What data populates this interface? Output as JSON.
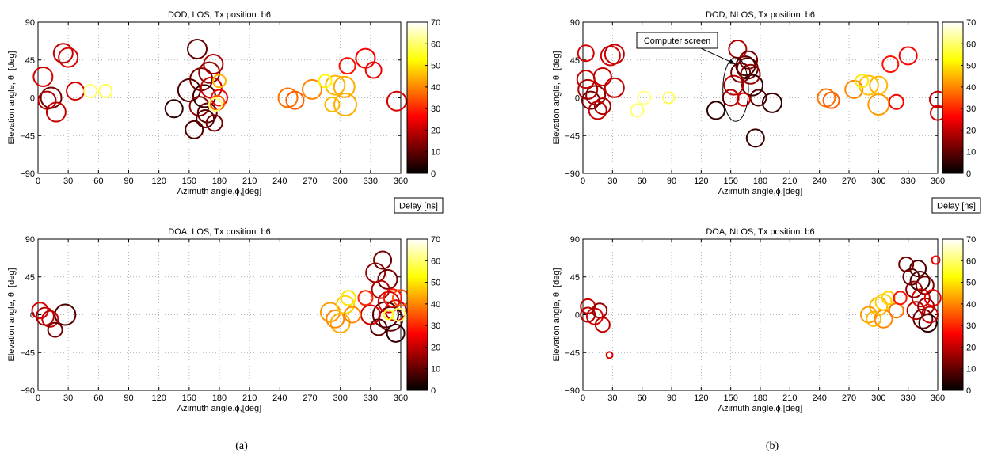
{
  "colors": {
    "colormap": "hot",
    "annotation": "#000000"
  },
  "captions": [
    "(a)",
    "(b)"
  ],
  "delay_label": "Delay [ns]",
  "annotation_text": "Computer screen",
  "chart_data": [
    {
      "type": "scatter",
      "title": "DOD, LOS, Tx position: b6",
      "xlabel": "Azimuth angle,ϕ,[deg]",
      "ylabel": "Elevation angle, θ, [deg]",
      "xlim": [
        0,
        360
      ],
      "ylim": [
        -90,
        90
      ],
      "xticks": [
        0,
        30,
        60,
        90,
        120,
        150,
        180,
        210,
        240,
        270,
        300,
        330,
        360
      ],
      "yticks": [
        -90,
        -45,
        0,
        45,
        90
      ],
      "grid": true,
      "colorbar": {
        "label": "Delay [ns]",
        "range": [
          0,
          70
        ],
        "ticks": [
          0,
          10,
          20,
          30,
          40,
          50,
          60,
          70
        ]
      },
      "points": [
        {
          "x": 5,
          "y": 25,
          "delay": 22,
          "size": 12
        },
        {
          "x": 13,
          "y": 0,
          "delay": 12,
          "size": 13
        },
        {
          "x": 9,
          "y": -3,
          "delay": 18,
          "size": 11
        },
        {
          "x": 18,
          "y": -17,
          "delay": 20,
          "size": 12
        },
        {
          "x": 25,
          "y": 53,
          "delay": 20,
          "size": 12
        },
        {
          "x": 30,
          "y": 48,
          "delay": 22,
          "size": 12
        },
        {
          "x": 37,
          "y": 8,
          "delay": 22,
          "size": 11
        },
        {
          "x": 52,
          "y": 8,
          "delay": 60,
          "size": 8
        },
        {
          "x": 67,
          "y": 8,
          "delay": 58,
          "size": 8
        },
        {
          "x": 135,
          "y": -13,
          "delay": 5,
          "size": 11
        },
        {
          "x": 150,
          "y": 9,
          "delay": 8,
          "size": 14
        },
        {
          "x": 155,
          "y": -38,
          "delay": 8,
          "size": 11
        },
        {
          "x": 158,
          "y": 58,
          "delay": 10,
          "size": 12
        },
        {
          "x": 162,
          "y": 22,
          "delay": 12,
          "size": 14
        },
        {
          "x": 165,
          "y": 2,
          "delay": 6,
          "size": 14
        },
        {
          "x": 168,
          "y": -18,
          "delay": 10,
          "size": 12
        },
        {
          "x": 170,
          "y": 30,
          "delay": 15,
          "size": 13
        },
        {
          "x": 172,
          "y": 12,
          "delay": 20,
          "size": 13
        },
        {
          "x": 174,
          "y": 40,
          "delay": 18,
          "size": 12
        },
        {
          "x": 175,
          "y": -30,
          "delay": 12,
          "size": 10
        },
        {
          "x": 178,
          "y": -6,
          "delay": 35,
          "size": 9
        },
        {
          "x": 180,
          "y": 20,
          "delay": 45,
          "size": 8
        },
        {
          "x": 180,
          "y": 0,
          "delay": 25,
          "size": 10
        },
        {
          "x": 160,
          "y": -10,
          "delay": 14,
          "size": 12
        },
        {
          "x": 166,
          "y": -25,
          "delay": 9,
          "size": 11
        },
        {
          "x": 176,
          "y": -8,
          "delay": 60,
          "size": 8
        },
        {
          "x": 248,
          "y": 0,
          "delay": 38,
          "size": 12
        },
        {
          "x": 255,
          "y": -3,
          "delay": 36,
          "size": 11
        },
        {
          "x": 272,
          "y": 10,
          "delay": 40,
          "size": 12
        },
        {
          "x": 285,
          "y": 20,
          "delay": 52,
          "size": 8
        },
        {
          "x": 292,
          "y": -8,
          "delay": 45,
          "size": 9
        },
        {
          "x": 295,
          "y": 15,
          "delay": 45,
          "size": 12
        },
        {
          "x": 305,
          "y": -8,
          "delay": 44,
          "size": 14
        },
        {
          "x": 304,
          "y": 13,
          "delay": 44,
          "size": 13
        },
        {
          "x": 307,
          "y": 38,
          "delay": 28,
          "size": 10
        },
        {
          "x": 325,
          "y": 47,
          "delay": 26,
          "size": 12
        },
        {
          "x": 333,
          "y": 33,
          "delay": 25,
          "size": 10
        },
        {
          "x": 356,
          "y": -4,
          "delay": 22,
          "size": 12
        }
      ]
    },
    {
      "type": "scatter",
      "title": "DOD, NLOS, Tx position: b6",
      "xlabel": "Azimuth angle,ϕ,[deg]",
      "ylabel": "Elevation angle, θ, [deg]",
      "xlim": [
        0,
        360
      ],
      "ylim": [
        -90,
        90
      ],
      "xticks": [
        0,
        30,
        60,
        90,
        120,
        150,
        180,
        210,
        240,
        270,
        300,
        330,
        360
      ],
      "yticks": [
        -90,
        -45,
        0,
        45,
        90
      ],
      "grid": true,
      "colorbar": {
        "label": "Delay [ns]",
        "range": [
          0,
          70
        ],
        "ticks": [
          0,
          10,
          20,
          30,
          40,
          50,
          60,
          70
        ]
      },
      "annotation": {
        "text": "Computer screen",
        "ellipse_center": [
          155,
          10
        ],
        "ellipse_rx": 13,
        "ellipse_ry": 38
      },
      "points": [
        {
          "x": 3,
          "y": 53,
          "delay": 22,
          "size": 10
        },
        {
          "x": 3,
          "y": 22,
          "delay": 20,
          "size": 11
        },
        {
          "x": 5,
          "y": 10,
          "delay": 18,
          "size": 12
        },
        {
          "x": 8,
          "y": -3,
          "delay": 12,
          "size": 11
        },
        {
          "x": 13,
          "y": 3,
          "delay": 15,
          "size": 12
        },
        {
          "x": 15,
          "y": -15,
          "delay": 20,
          "size": 11
        },
        {
          "x": 20,
          "y": 25,
          "delay": 20,
          "size": 11
        },
        {
          "x": 20,
          "y": -10,
          "delay": 18,
          "size": 10
        },
        {
          "x": 28,
          "y": 50,
          "delay": 22,
          "size": 12
        },
        {
          "x": 32,
          "y": 52,
          "delay": 20,
          "size": 12
        },
        {
          "x": 32,
          "y": 12,
          "delay": 20,
          "size": 12
        },
        {
          "x": 55,
          "y": -15,
          "delay": 60,
          "size": 8
        },
        {
          "x": 62,
          "y": 0,
          "delay": 62,
          "size": 8
        },
        {
          "x": 87,
          "y": 0,
          "delay": 58,
          "size": 7
        },
        {
          "x": 135,
          "y": -15,
          "delay": 5,
          "size": 11
        },
        {
          "x": 150,
          "y": 0,
          "delay": 18,
          "size": 10
        },
        {
          "x": 153,
          "y": 15,
          "delay": 20,
          "size": 12
        },
        {
          "x": 157,
          "y": 58,
          "delay": 18,
          "size": 11
        },
        {
          "x": 160,
          "y": 30,
          "delay": 12,
          "size": 12
        },
        {
          "x": 163,
          "y": -2,
          "delay": 22,
          "size": 8
        },
        {
          "x": 165,
          "y": 38,
          "delay": 8,
          "size": 12
        },
        {
          "x": 167,
          "y": 35,
          "delay": 10,
          "size": 13
        },
        {
          "x": 168,
          "y": 45,
          "delay": 12,
          "size": 11
        },
        {
          "x": 170,
          "y": 28,
          "delay": 15,
          "size": 12
        },
        {
          "x": 172,
          "y": 15,
          "delay": 5,
          "size": 13
        },
        {
          "x": 175,
          "y": -48,
          "delay": 6,
          "size": 11
        },
        {
          "x": 178,
          "y": 0,
          "delay": 8,
          "size": 10
        },
        {
          "x": 192,
          "y": -6,
          "delay": 6,
          "size": 12
        },
        {
          "x": 247,
          "y": 0,
          "delay": 38,
          "size": 11
        },
        {
          "x": 252,
          "y": -3,
          "delay": 36,
          "size": 10
        },
        {
          "x": 275,
          "y": 10,
          "delay": 40,
          "size": 11
        },
        {
          "x": 283,
          "y": 20,
          "delay": 50,
          "size": 8
        },
        {
          "x": 290,
          "y": 15,
          "delay": 46,
          "size": 12
        },
        {
          "x": 300,
          "y": 15,
          "delay": 45,
          "size": 11
        },
        {
          "x": 300,
          "y": -8,
          "delay": 42,
          "size": 13
        },
        {
          "x": 312,
          "y": 40,
          "delay": 28,
          "size": 10
        },
        {
          "x": 318,
          "y": -5,
          "delay": 26,
          "size": 9
        },
        {
          "x": 330,
          "y": 50,
          "delay": 26,
          "size": 11
        },
        {
          "x": 360,
          "y": -18,
          "delay": 22,
          "size": 9
        },
        {
          "x": 360,
          "y": -2,
          "delay": 20,
          "size": 10
        }
      ]
    },
    {
      "type": "scatter",
      "title": "DOA, LOS, Tx position: b6",
      "xlabel": "Azimuth angle,ϕ,[deg]",
      "ylabel": "Elevation angle, θ, [deg]",
      "xlim": [
        0,
        360
      ],
      "ylim": [
        -90,
        90
      ],
      "xticks": [
        0,
        30,
        60,
        90,
        120,
        150,
        180,
        210,
        240,
        270,
        300,
        330,
        360
      ],
      "yticks": [
        -90,
        -45,
        0,
        45,
        90
      ],
      "grid": true,
      "colorbar": {
        "label": "",
        "range": [
          0,
          70
        ],
        "ticks": [
          0,
          10,
          20,
          30,
          40,
          50,
          60,
          70
        ]
      },
      "points": [
        {
          "x": 2,
          "y": 5,
          "delay": 22,
          "size": 10
        },
        {
          "x": 7,
          "y": -2,
          "delay": 18,
          "size": 11
        },
        {
          "x": 12,
          "y": -5,
          "delay": 20,
          "size": 10
        },
        {
          "x": 17,
          "y": -18,
          "delay": 12,
          "size": 9
        },
        {
          "x": 27,
          "y": 0,
          "delay": 8,
          "size": 13
        },
        {
          "x": 290,
          "y": 3,
          "delay": 42,
          "size": 12
        },
        {
          "x": 295,
          "y": -5,
          "delay": 40,
          "size": 11
        },
        {
          "x": 300,
          "y": -10,
          "delay": 44,
          "size": 12
        },
        {
          "x": 305,
          "y": 12,
          "delay": 48,
          "size": 11
        },
        {
          "x": 308,
          "y": 20,
          "delay": 50,
          "size": 9
        },
        {
          "x": 312,
          "y": 0,
          "delay": 40,
          "size": 10
        },
        {
          "x": 325,
          "y": 20,
          "delay": 30,
          "size": 9
        },
        {
          "x": 330,
          "y": 0,
          "delay": 22,
          "size": 12
        },
        {
          "x": 335,
          "y": 50,
          "delay": 15,
          "size": 12
        },
        {
          "x": 338,
          "y": -15,
          "delay": 10,
          "size": 10
        },
        {
          "x": 340,
          "y": 30,
          "delay": 18,
          "size": 11
        },
        {
          "x": 342,
          "y": 65,
          "delay": 12,
          "size": 11
        },
        {
          "x": 345,
          "y": 0,
          "delay": 8,
          "size": 16
        },
        {
          "x": 347,
          "y": 42,
          "delay": 12,
          "size": 12
        },
        {
          "x": 348,
          "y": 15,
          "delay": 22,
          "size": 13
        },
        {
          "x": 350,
          "y": -5,
          "delay": 10,
          "size": 15
        },
        {
          "x": 352,
          "y": 20,
          "delay": 28,
          "size": 11
        },
        {
          "x": 355,
          "y": 5,
          "delay": 20,
          "size": 13
        },
        {
          "x": 355,
          "y": -22,
          "delay": 5,
          "size": 11
        },
        {
          "x": 358,
          "y": 0,
          "delay": 60,
          "size": 8
        },
        {
          "x": 360,
          "y": 20,
          "delay": 35,
          "size": 10
        },
        {
          "x": 348,
          "y": 0,
          "delay": 55,
          "size": 6
        }
      ]
    },
    {
      "type": "scatter",
      "title": "DOA, NLOS, Tx position: b6",
      "xlabel": "Azimuth angle,ϕ,[deg]",
      "ylabel": "Elevation angle, θ, [deg]",
      "xlim": [
        0,
        360
      ],
      "ylim": [
        -90,
        90
      ],
      "xticks": [
        0,
        30,
        60,
        90,
        120,
        150,
        180,
        210,
        240,
        270,
        300,
        330,
        360
      ],
      "yticks": [
        -90,
        -45,
        0,
        45,
        90
      ],
      "grid": true,
      "colorbar": {
        "label": "",
        "range": [
          0,
          70
        ],
        "ticks": [
          0,
          10,
          20,
          30,
          40,
          50,
          60,
          70
        ]
      },
      "points": [
        {
          "x": 5,
          "y": 10,
          "delay": 20,
          "size": 9
        },
        {
          "x": 5,
          "y": 0,
          "delay": 18,
          "size": 9
        },
        {
          "x": 12,
          "y": -2,
          "delay": 22,
          "size": 10
        },
        {
          "x": 17,
          "y": 5,
          "delay": 15,
          "size": 9
        },
        {
          "x": 20,
          "y": -12,
          "delay": 20,
          "size": 9
        },
        {
          "x": 27,
          "y": -48,
          "delay": 22,
          "size": 4
        },
        {
          "x": 290,
          "y": 0,
          "delay": 42,
          "size": 10
        },
        {
          "x": 295,
          "y": -5,
          "delay": 45,
          "size": 9
        },
        {
          "x": 300,
          "y": 10,
          "delay": 45,
          "size": 11
        },
        {
          "x": 305,
          "y": 15,
          "delay": 48,
          "size": 10
        },
        {
          "x": 305,
          "y": -5,
          "delay": 40,
          "size": 11
        },
        {
          "x": 310,
          "y": 20,
          "delay": 48,
          "size": 8
        },
        {
          "x": 318,
          "y": 5,
          "delay": 38,
          "size": 9
        },
        {
          "x": 322,
          "y": 20,
          "delay": 28,
          "size": 8
        },
        {
          "x": 328,
          "y": 60,
          "delay": 12,
          "size": 9
        },
        {
          "x": 333,
          "y": 45,
          "delay": 10,
          "size": 10
        },
        {
          "x": 336,
          "y": 30,
          "delay": 15,
          "size": 10
        },
        {
          "x": 338,
          "y": 5,
          "delay": 18,
          "size": 11
        },
        {
          "x": 340,
          "y": 55,
          "delay": 8,
          "size": 10
        },
        {
          "x": 342,
          "y": 40,
          "delay": 6,
          "size": 12
        },
        {
          "x": 343,
          "y": 20,
          "delay": 22,
          "size": 11
        },
        {
          "x": 345,
          "y": -5,
          "delay": 10,
          "size": 12
        },
        {
          "x": 347,
          "y": 35,
          "delay": 12,
          "size": 11
        },
        {
          "x": 348,
          "y": 10,
          "delay": 15,
          "size": 10
        },
        {
          "x": 350,
          "y": -10,
          "delay": 5,
          "size": 11
        },
        {
          "x": 352,
          "y": 0,
          "delay": 20,
          "size": 10
        },
        {
          "x": 355,
          "y": 20,
          "delay": 25,
          "size": 10
        },
        {
          "x": 358,
          "y": 65,
          "delay": 25,
          "size": 5
        }
      ]
    }
  ]
}
